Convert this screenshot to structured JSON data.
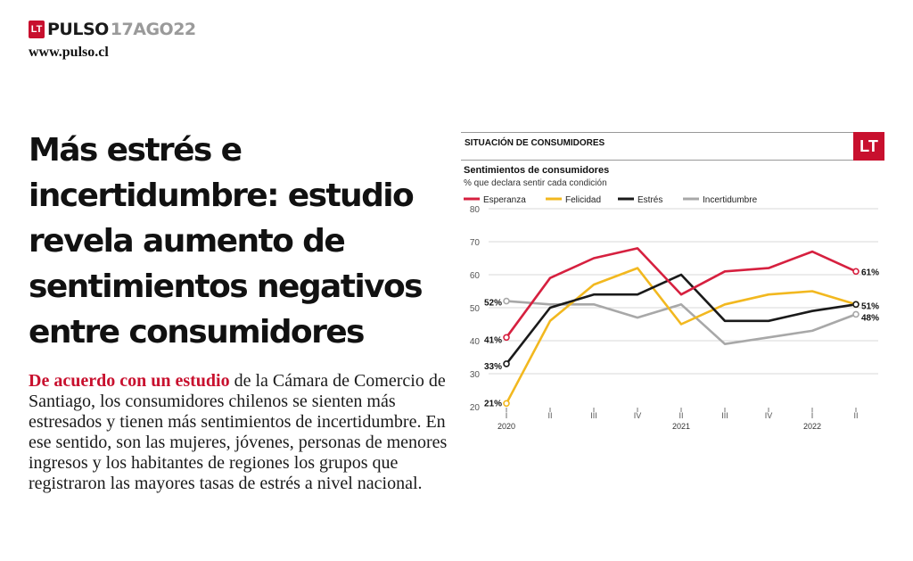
{
  "masthead": {
    "logo": "LT",
    "name": "PULSO",
    "date": "17AGO22",
    "website": "www.pulso.cl"
  },
  "article": {
    "headline_lines": [
      "Más estrés e",
      "incertidumbre: estudio",
      "revela aumento de",
      "sentimientos negativos",
      "entre consumidores"
    ],
    "lead": "De acuerdo con un estudio",
    "body": " de la Cámara de Comercio de Santiago, los consumidores chilenos se sienten más estresados y tienen más sentimientos de incertidumbre. En ese sentido, son las mujeres, jóvenes, personas de menores ingresos y los habitantes de regiones los grupos que registraron las mayores tasas de estrés a nivel nacional."
  },
  "chart_header": {
    "section": "SITUACIÓN DE CONSUMIDORES",
    "logo": "LT"
  },
  "chart_data": {
    "type": "line",
    "title": "Sentimientos de consumidores",
    "subtitle": "% que declara sentir cada condición",
    "categories": [
      "I",
      "II",
      "III",
      "IV",
      "II",
      "III",
      "IV",
      "I",
      "II"
    ],
    "years": [
      {
        "label": "2020",
        "index": 0
      },
      {
        "label": "2021",
        "index": 4
      },
      {
        "label": "2022",
        "index": 7
      }
    ],
    "ylim": [
      20,
      80
    ],
    "yticks": [
      20,
      30,
      40,
      50,
      60,
      70,
      80
    ],
    "grid": true,
    "legend_position": "top",
    "series": [
      {
        "name": "Esperanza",
        "color": "#d6203f",
        "values": [
          41,
          59,
          65,
          68,
          54,
          61,
          62,
          67,
          61
        ],
        "start_label": "41%",
        "end_label": "61%"
      },
      {
        "name": "Felicidad",
        "color": "#f2b81f",
        "values": [
          21,
          46,
          57,
          62,
          45,
          51,
          54,
          55,
          51
        ],
        "start_label": "21%",
        "end_label": "51%"
      },
      {
        "name": "Estrés",
        "color": "#1a1a1a",
        "values": [
          33,
          50,
          54,
          54,
          60,
          46,
          46,
          49,
          51
        ],
        "start_label": "33%",
        "end_label": ""
      },
      {
        "name": "Incertidumbre",
        "color": "#a8a8a8",
        "values": [
          52,
          51,
          51,
          47,
          51,
          39,
          41,
          43,
          48
        ],
        "start_label": "52%",
        "end_label": "48%"
      }
    ]
  }
}
